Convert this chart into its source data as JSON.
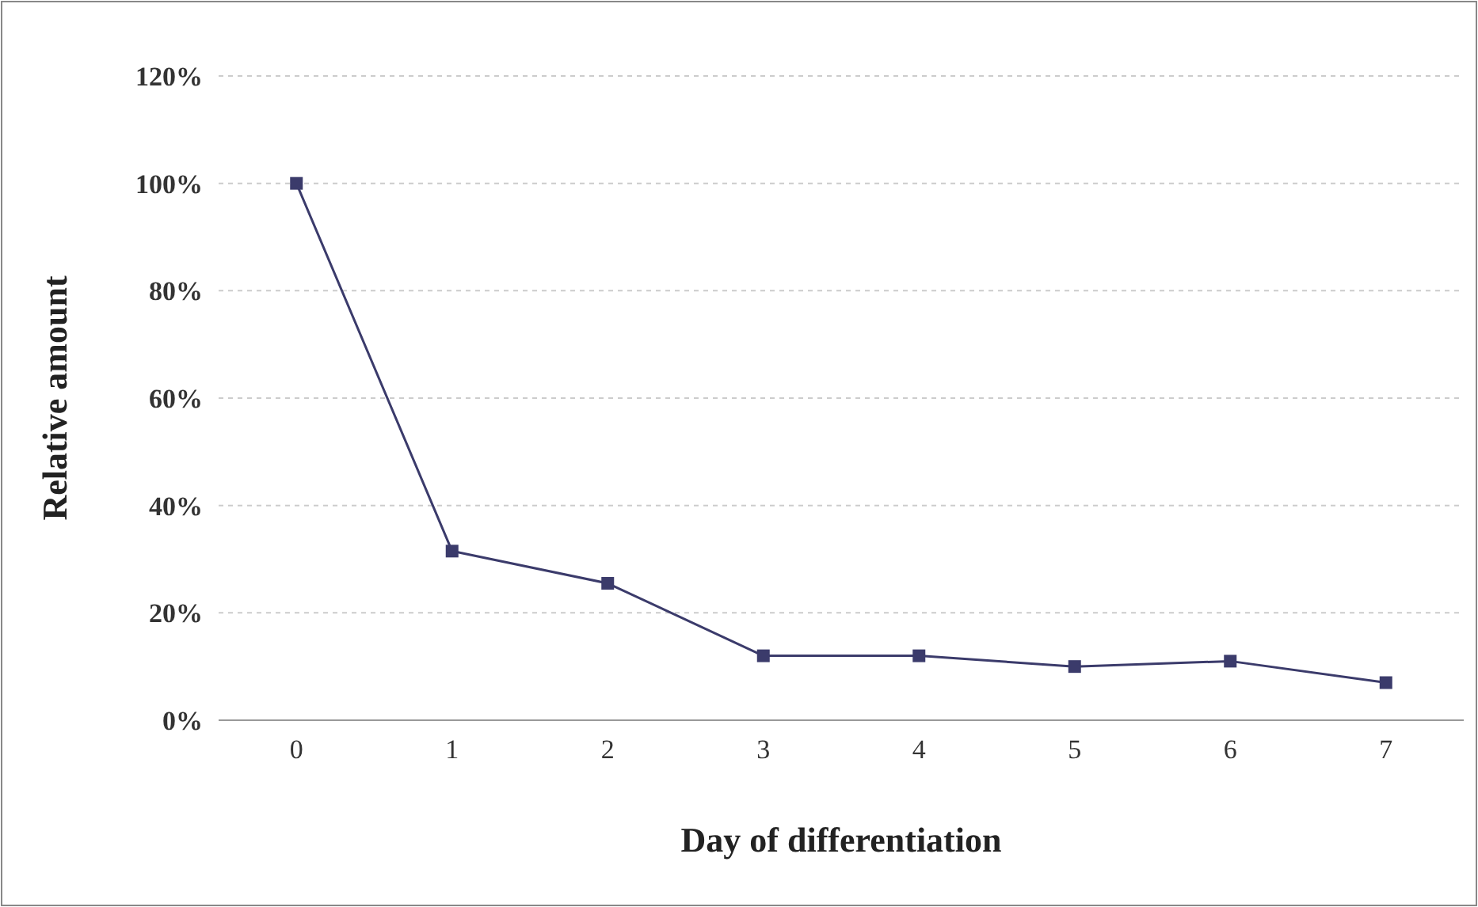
{
  "chart_data": {
    "type": "line",
    "xlabel": "Day of differentiation",
    "ylabel": "Relative amount",
    "categories": [
      "0",
      "1",
      "2",
      "3",
      "4",
      "5",
      "6",
      "7"
    ],
    "series": [
      {
        "color": "#3b3b6b",
        "values": [
          100,
          31.5,
          25.5,
          12,
          12,
          10,
          11,
          7
        ]
      }
    ],
    "ylim": [
      0,
      120
    ],
    "yticks": [
      {
        "value": 0,
        "label": "0%"
      },
      {
        "value": 20,
        "label": "20%"
      },
      {
        "value": 40,
        "label": "40%"
      },
      {
        "value": 60,
        "label": "60%"
      },
      {
        "value": 80,
        "label": "80%"
      },
      {
        "value": 100,
        "label": "100%"
      },
      {
        "value": 120,
        "label": "120%"
      }
    ],
    "grid": "y",
    "marker": "square",
    "line_style": "solid"
  }
}
